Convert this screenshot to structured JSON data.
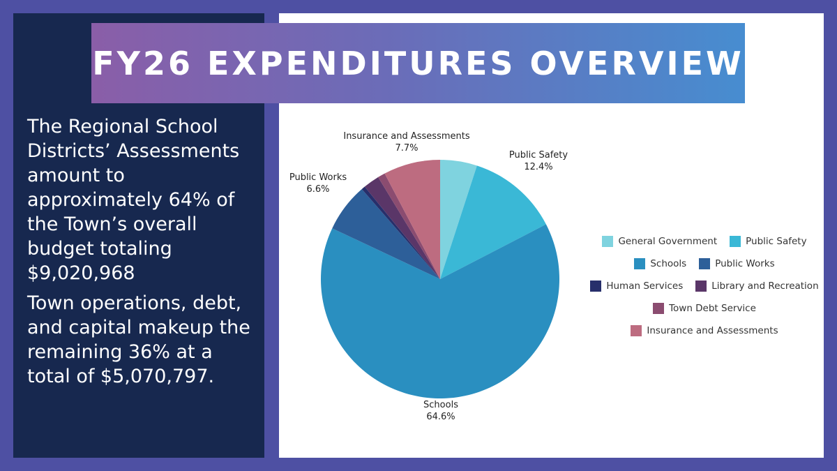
{
  "summary": {
    "paragraph1": "The Regional School Districts’ Assessments amount to approximately 64% of the Town’s overall budget totaling $9,020,968",
    "paragraph2": "Town operations, debt, and capital makeup the remaining 36% at a total of $5,070,797."
  },
  "chart_data": {
    "type": "pie",
    "title": "FY26 EXPENDITURES OVERVIEW",
    "legend_position": "right",
    "slices": [
      {
        "name": "General Government",
        "value": 5.0,
        "color": "#7fd3df",
        "label": "",
        "value_label": ""
      },
      {
        "name": "Public Safety",
        "value": 12.4,
        "color": "#3ab8d6",
        "label": "Public Safety",
        "value_label": "12.4%"
      },
      {
        "name": "Schools",
        "value": 64.6,
        "color": "#2a8fc0",
        "label": "Schools",
        "value_label": "64.6%"
      },
      {
        "name": "Public Works",
        "value": 6.6,
        "color": "#2d5f99",
        "label": "Public Works",
        "value_label": "6.6%"
      },
      {
        "name": "Human Services",
        "value": 0.5,
        "color": "#272f6b",
        "label": "",
        "value_label": ""
      },
      {
        "name": "Library and Recreation",
        "value": 2.2,
        "color": "#5a3668",
        "label": "",
        "value_label": ""
      },
      {
        "name": "Town Debt Service",
        "value": 1.0,
        "color": "#8b4c70",
        "label": "",
        "value_label": ""
      },
      {
        "name": "Insurance and Assessments",
        "value": 7.7,
        "color": "#bd6c80",
        "label": "Insurance and Assessments",
        "value_label": "7.7%"
      }
    ]
  }
}
